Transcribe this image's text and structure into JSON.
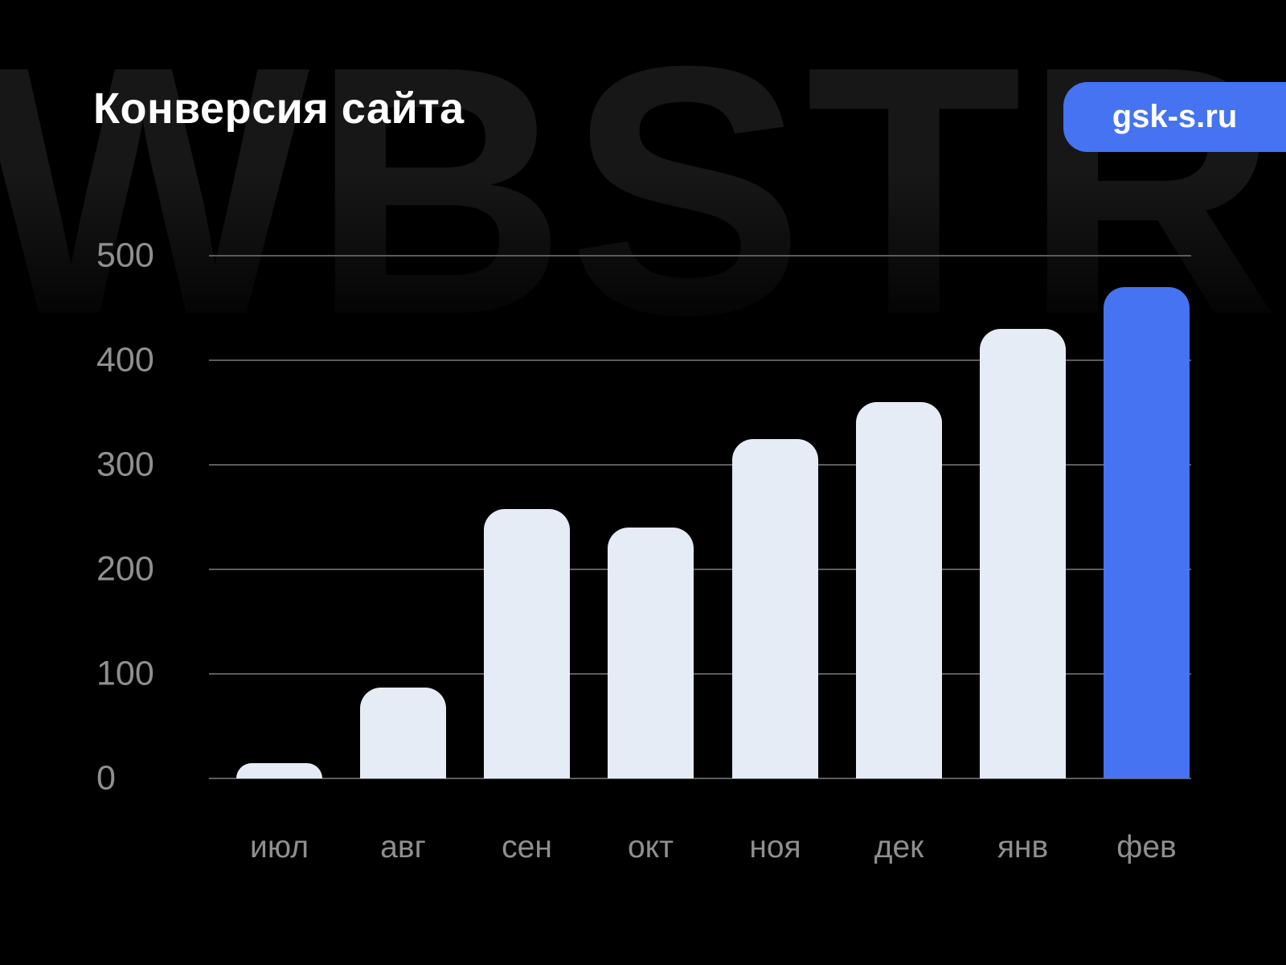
{
  "header": {
    "title": "Конверсия сайта",
    "badge_label": "gsk-s.ru"
  },
  "watermark": "WBSTR",
  "colors": {
    "background": "#000000",
    "accent_blue": "#4573f2",
    "bar_light": "#e6ecf5",
    "gridline": "#5c5c5c",
    "axis_label": "#8f8f8f",
    "title_text": "#ffffff",
    "badge_text": "#ffffff",
    "watermark_text": "#171717"
  },
  "chart_data": {
    "type": "bar",
    "title": "Конверсия сайта",
    "categories": [
      "июл",
      "авг",
      "сен",
      "окт",
      "ноя",
      "дек",
      "янв",
      "фев"
    ],
    "values": [
      15,
      87,
      258,
      240,
      325,
      360,
      430,
      470
    ],
    "highlight_index": 7,
    "highlight_category": "фев",
    "yticks": [
      0,
      100,
      200,
      300,
      400,
      500
    ],
    "ylim": [
      0,
      500
    ],
    "xlabel": "",
    "ylabel": "",
    "grid": true,
    "legend": false
  }
}
